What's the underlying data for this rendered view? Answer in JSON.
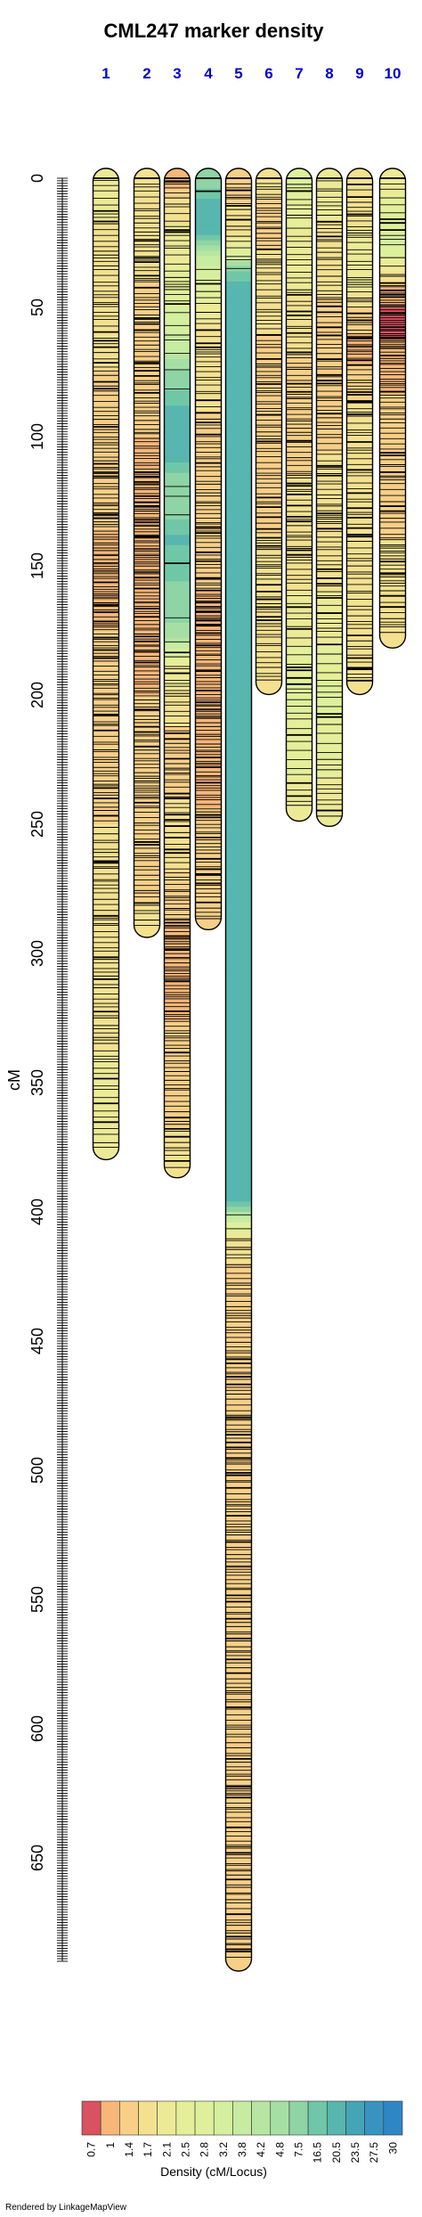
{
  "chart_data": {
    "type": "linkage-map-density",
    "title": "CML247 marker density",
    "ylabel": "cM",
    "ylim": [
      0,
      690
    ],
    "y_ticks": [
      0,
      50,
      100,
      150,
      200,
      250,
      300,
      350,
      400,
      450,
      500,
      550,
      600,
      650
    ],
    "chromosomes": [
      {
        "name": "1",
        "length": 376,
        "density": [
          [
            0,
            2.1
          ],
          [
            30,
            1.7
          ],
          [
            120,
            1.4
          ],
          [
            150,
            1
          ],
          [
            200,
            1.4
          ],
          [
            300,
            1.7
          ],
          [
            376,
            2.1
          ]
        ]
      },
      {
        "name": "2",
        "length": 290,
        "density": [
          [
            0,
            1.7
          ],
          [
            80,
            1.4
          ],
          [
            120,
            1
          ],
          [
            160,
            1
          ],
          [
            240,
            1.4
          ],
          [
            270,
            1.4
          ],
          [
            290,
            1.7
          ]
        ]
      },
      {
        "name": "3",
        "length": 383,
        "density": [
          [
            0,
            1
          ],
          [
            10,
            1.7
          ],
          [
            40,
            2.5
          ],
          [
            70,
            4.2
          ],
          [
            90,
            20.5
          ],
          [
            110,
            20.5
          ],
          [
            115,
            9.5
          ],
          [
            130,
            9.5
          ],
          [
            140,
            20.5
          ],
          [
            180,
            4.2
          ],
          [
            190,
            2.1
          ],
          [
            220,
            1.4
          ],
          [
            260,
            1.7
          ],
          [
            300,
            1
          ],
          [
            383,
            1.7
          ]
        ]
      },
      {
        "name": "4",
        "length": 287,
        "density": [
          [
            0,
            8
          ],
          [
            10,
            20.5
          ],
          [
            22,
            20.5
          ],
          [
            28,
            4.2
          ],
          [
            45,
            2.5
          ],
          [
            60,
            1.7
          ],
          [
            120,
            1.4
          ],
          [
            200,
            1
          ],
          [
            287,
            1.4
          ]
        ]
      },
      {
        "name": "5",
        "length": 690,
        "density": [
          [
            0,
            1.4
          ],
          [
            20,
            1.7
          ],
          [
            30,
            2.8
          ],
          [
            40,
            20.5
          ],
          [
            395,
            20.5
          ],
          [
            400,
            5
          ],
          [
            410,
            1.7
          ],
          [
            430,
            1.4
          ],
          [
            500,
            1.4
          ],
          [
            690,
            1.4
          ]
        ]
      },
      {
        "name": "6",
        "length": 196,
        "density": [
          [
            0,
            1.7
          ],
          [
            15,
            1.4
          ],
          [
            40,
            1.7
          ],
          [
            80,
            1.4
          ],
          [
            196,
            1.7
          ]
        ]
      },
      {
        "name": "7",
        "length": 245,
        "density": [
          [
            0,
            2.8
          ],
          [
            30,
            2.1
          ],
          [
            80,
            1.4
          ],
          [
            150,
            1.7
          ],
          [
            200,
            2.8
          ],
          [
            245,
            2.1
          ]
        ]
      },
      {
        "name": "8",
        "length": 247,
        "density": [
          [
            0,
            2.1
          ],
          [
            60,
            1.4
          ],
          [
            150,
            1.7
          ],
          [
            200,
            2.8
          ],
          [
            247,
            2.1
          ]
        ]
      },
      {
        "name": "9",
        "length": 196,
        "density": [
          [
            0,
            1.7
          ],
          [
            40,
            2.1
          ],
          [
            65,
            1
          ],
          [
            90,
            1.7
          ],
          [
            196,
            1.7
          ]
        ]
      },
      {
        "name": "10",
        "length": 178,
        "density": [
          [
            0,
            2.1
          ],
          [
            25,
            3.2
          ],
          [
            35,
            2.1
          ],
          [
            45,
            1
          ],
          [
            55,
            0.7
          ],
          [
            70,
            1
          ],
          [
            100,
            1.4
          ],
          [
            178,
            1.7
          ]
        ]
      }
    ],
    "legend": {
      "title": "Density (cM/Locus)",
      "values": [
        "0.7",
        "1",
        "1.4",
        "1.7",
        "2.1",
        "2.5",
        "2.8",
        "3.2",
        "3.8",
        "4.2",
        "4.8",
        "7.5",
        "16.5",
        "20.5",
        "23.5",
        "27.5",
        "30"
      ],
      "colors": [
        "#d8525f",
        "#f6b778",
        "#f7cf87",
        "#f3e190",
        "#ecea96",
        "#e5ee99",
        "#def09b",
        "#d4ef9e",
        "#c7eba0",
        "#b7e5a2",
        "#a6dfa4",
        "#8ed4a5",
        "#70c7a7",
        "#57b6ad",
        "#45a4b6",
        "#3893c0",
        "#2f86c6"
      ]
    },
    "footer": "Rendered by LinkageMapView"
  }
}
